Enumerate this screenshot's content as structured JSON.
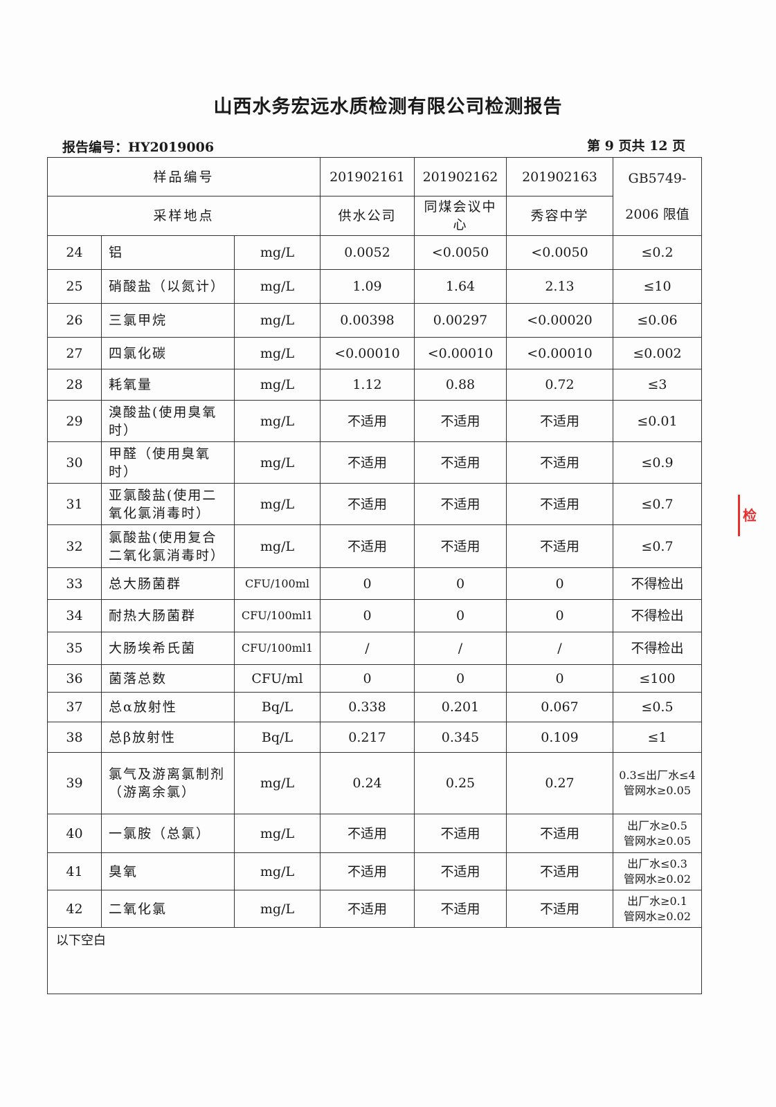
{
  "title": "山西水务宏远水质检测有限公司检测报告",
  "report_no": "报告编号：HY2019006",
  "page_no": "第 9 页共 12 页",
  "header": {
    "sample_no_label": "样品编号",
    "sample_site_label": "采样地点",
    "samples": [
      "201902161",
      "201902162",
      "201902163"
    ],
    "sites": [
      "供水公司",
      "同煤会议中心",
      "秀容中学"
    ],
    "limit_label_1": "GB5749-",
    "limit_label_2": "2006 限值"
  },
  "rows": [
    {
      "no": "24",
      "item": "铝",
      "unit": "mg/L",
      "v": [
        "0.0052",
        "<0.0050",
        "<0.0050"
      ],
      "limit": "≤0.2"
    },
    {
      "no": "25",
      "item": "硝酸盐（以氮计）",
      "unit": "mg/L",
      "v": [
        "1.09",
        "1.64",
        "2.13"
      ],
      "limit": "≤10"
    },
    {
      "no": "26",
      "item": "三氯甲烷",
      "unit": "mg/L",
      "v": [
        "0.00398",
        "0.00297",
        "<0.00020"
      ],
      "limit": "≤0.06"
    },
    {
      "no": "27",
      "item": "四氯化碳",
      "unit": "mg/L",
      "v": [
        "<0.00010",
        "<0.00010",
        "<0.00010"
      ],
      "limit": "≤0.002"
    },
    {
      "no": "28",
      "item": "耗氧量",
      "unit": "mg/L",
      "v": [
        "1.12",
        "0.88",
        "0.72"
      ],
      "limit": "≤3"
    },
    {
      "no": "29",
      "item": "溴酸盐(使用臭氧时）",
      "unit": "mg/L",
      "v": [
        "不适用",
        "不适用",
        "不适用"
      ],
      "limit": "≤0.01"
    },
    {
      "no": "30",
      "item": "甲醛（使用臭氧时）",
      "unit": "mg/L",
      "v": [
        "不适用",
        "不适用",
        "不适用"
      ],
      "limit": "≤0.9"
    },
    {
      "no": "31",
      "item": "亚氯酸盐(使用二氧化氯消毒时）",
      "unit": "mg/L",
      "v": [
        "不适用",
        "不适用",
        "不适用"
      ],
      "limit": "≤0.7"
    },
    {
      "no": "32",
      "item": "氯酸盐(使用复合二氧化氯消毒时）",
      "unit": "mg/L",
      "v": [
        "不适用",
        "不适用",
        "不适用"
      ],
      "limit": "≤0.7"
    },
    {
      "no": "33",
      "item": "总大肠菌群",
      "unit": "CFU/100ml",
      "v": [
        "0",
        "0",
        "0"
      ],
      "limit": "不得检出"
    },
    {
      "no": "34",
      "item": "耐热大肠菌群",
      "unit": "CFU/100ml1",
      "v": [
        "0",
        "0",
        "0"
      ],
      "limit": "不得检出"
    },
    {
      "no": "35",
      "item": "大肠埃希氏菌",
      "unit": "CFU/100ml1",
      "v": [
        "/",
        "/",
        "/"
      ],
      "limit": "不得检出"
    },
    {
      "no": "36",
      "item": "菌落总数",
      "unit": "CFU/ml",
      "v": [
        "0",
        "0",
        "0"
      ],
      "limit": "≤100"
    },
    {
      "no": "37",
      "item": "总α放射性",
      "unit": "Bq/L",
      "v": [
        "0.338",
        "0.201",
        "0.067"
      ],
      "limit": "≤0.5"
    },
    {
      "no": "38",
      "item": "总β放射性",
      "unit": "Bq/L",
      "v": [
        "0.217",
        "0.345",
        "0.109"
      ],
      "limit": "≤1"
    },
    {
      "no": "39",
      "item": "氯气及游离氯制剂（游离余氯）",
      "unit": "mg/L",
      "v": [
        "0.24",
        "0.25",
        "0.27"
      ],
      "limit": "0.3≤出厂水≤4 管网水≥0.05"
    },
    {
      "no": "40",
      "item": "一氯胺（总氯）",
      "unit": "mg/L",
      "v": [
        "不适用",
        "不适用",
        "不适用"
      ],
      "limit": "出厂水≥0.5 管网水≥0.05"
    },
    {
      "no": "41",
      "item": "臭氧",
      "unit": "mg/L",
      "v": [
        "不适用",
        "不适用",
        "不适用"
      ],
      "limit": "出厂水≤0.3 管网水≥0.02"
    },
    {
      "no": "42",
      "item": "二氧化氯",
      "unit": "mg/L",
      "v": [
        "不适用",
        "不适用",
        "不适用"
      ],
      "limit": "出厂水≥0.1 管网水≥0.02"
    }
  ],
  "footer_note": "以下空白",
  "stamp_text": "检测"
}
